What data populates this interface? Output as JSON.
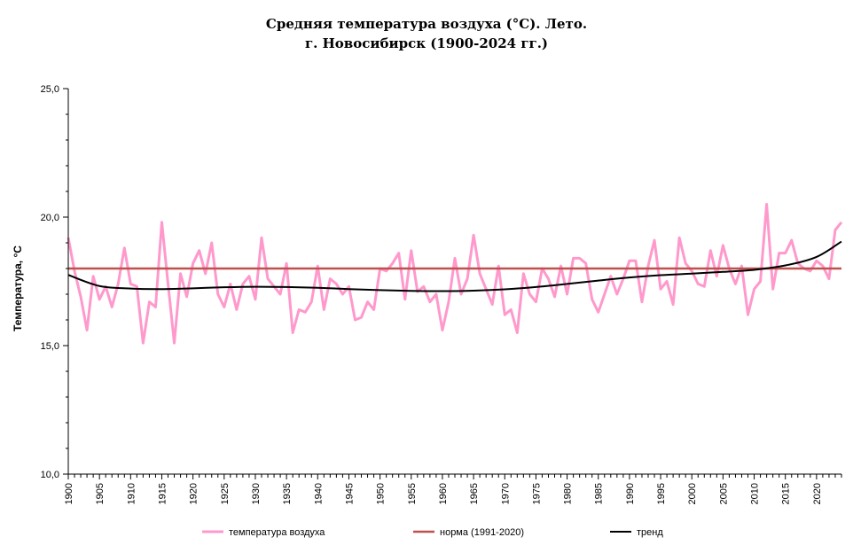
{
  "chart_data": {
    "type": "line",
    "title": "Средняя температура воздуха (°C). Лето.",
    "subtitle": "г. Новосибирск (1900-2024 гг.)",
    "xlabel": "",
    "ylabel": "Температура, °С",
    "xlim": [
      1900,
      2024
    ],
    "ylim": [
      10,
      25
    ],
    "yticks": [
      "10,0",
      "15,0",
      "20,0",
      "25,0"
    ],
    "xticks": [
      "1900",
      "1905",
      "1910",
      "1915",
      "1920",
      "1925",
      "1930",
      "1935",
      "1940",
      "1945",
      "1950",
      "1955",
      "1960",
      "1965",
      "1970",
      "1975",
      "1980",
      "1985",
      "1990",
      "1995",
      "2000",
      "2005",
      "2010",
      "2015",
      "2020"
    ],
    "legend_position": "bottom",
    "grid": false,
    "series": [
      {
        "name": "температура воздуха",
        "color": "#ff99cc",
        "x_start": 1900,
        "values": [
          19.2,
          17.9,
          16.9,
          15.6,
          17.7,
          16.8,
          17.3,
          16.5,
          17.4,
          18.8,
          17.4,
          17.3,
          15.1,
          16.7,
          16.5,
          19.8,
          17.4,
          15.1,
          17.8,
          16.9,
          18.2,
          18.7,
          17.8,
          19.0,
          17.0,
          16.5,
          17.4,
          16.4,
          17.4,
          17.7,
          16.8,
          19.2,
          17.6,
          17.3,
          17.0,
          18.2,
          15.5,
          16.4,
          16.3,
          16.7,
          18.1,
          16.4,
          17.6,
          17.4,
          17.0,
          17.3,
          16.0,
          16.1,
          16.7,
          16.4,
          18.0,
          17.9,
          18.2,
          18.6,
          16.8,
          18.7,
          17.1,
          17.3,
          16.7,
          17.0,
          15.6,
          16.7,
          18.4,
          17.0,
          17.6,
          19.3,
          17.8,
          17.2,
          16.6,
          18.1,
          16.2,
          16.4,
          15.5,
          17.8,
          17.0,
          16.7,
          18.0,
          17.6,
          16.9,
          18.1,
          17.0,
          18.4,
          18.4,
          18.2,
          16.8,
          16.3,
          17.0,
          17.7,
          17.0,
          17.6,
          18.3,
          18.3,
          16.7,
          18.1,
          19.1,
          17.2,
          17.5,
          16.6,
          19.2,
          18.2,
          17.9,
          17.4,
          17.3,
          18.7,
          17.7,
          18.9,
          18.0,
          17.4,
          18.1,
          16.2,
          17.2,
          17.5,
          20.5,
          17.2,
          18.6,
          18.6,
          19.1,
          18.2,
          18.0,
          17.9,
          18.3,
          18.1,
          17.6,
          19.5,
          19.8
        ]
      },
      {
        "name": "норма (1991-2020)",
        "color": "#c0504d",
        "x": [
          1900,
          2024
        ],
        "values": [
          18.0,
          18.0
        ]
      },
      {
        "name": "тренд",
        "color": "#000000",
        "x": [
          1900,
          1905,
          1910,
          1915,
          1920,
          1925,
          1930,
          1935,
          1940,
          1945,
          1950,
          1955,
          1960,
          1965,
          1970,
          1975,
          1980,
          1985,
          1990,
          1995,
          2000,
          2005,
          2010,
          2015,
          2020,
          2024
        ],
        "values": [
          17.75,
          17.32,
          17.22,
          17.2,
          17.23,
          17.27,
          17.29,
          17.28,
          17.25,
          17.2,
          17.16,
          17.13,
          17.12,
          17.14,
          17.19,
          17.28,
          17.4,
          17.53,
          17.65,
          17.74,
          17.8,
          17.87,
          17.95,
          18.12,
          18.45,
          19.05
        ]
      }
    ]
  }
}
